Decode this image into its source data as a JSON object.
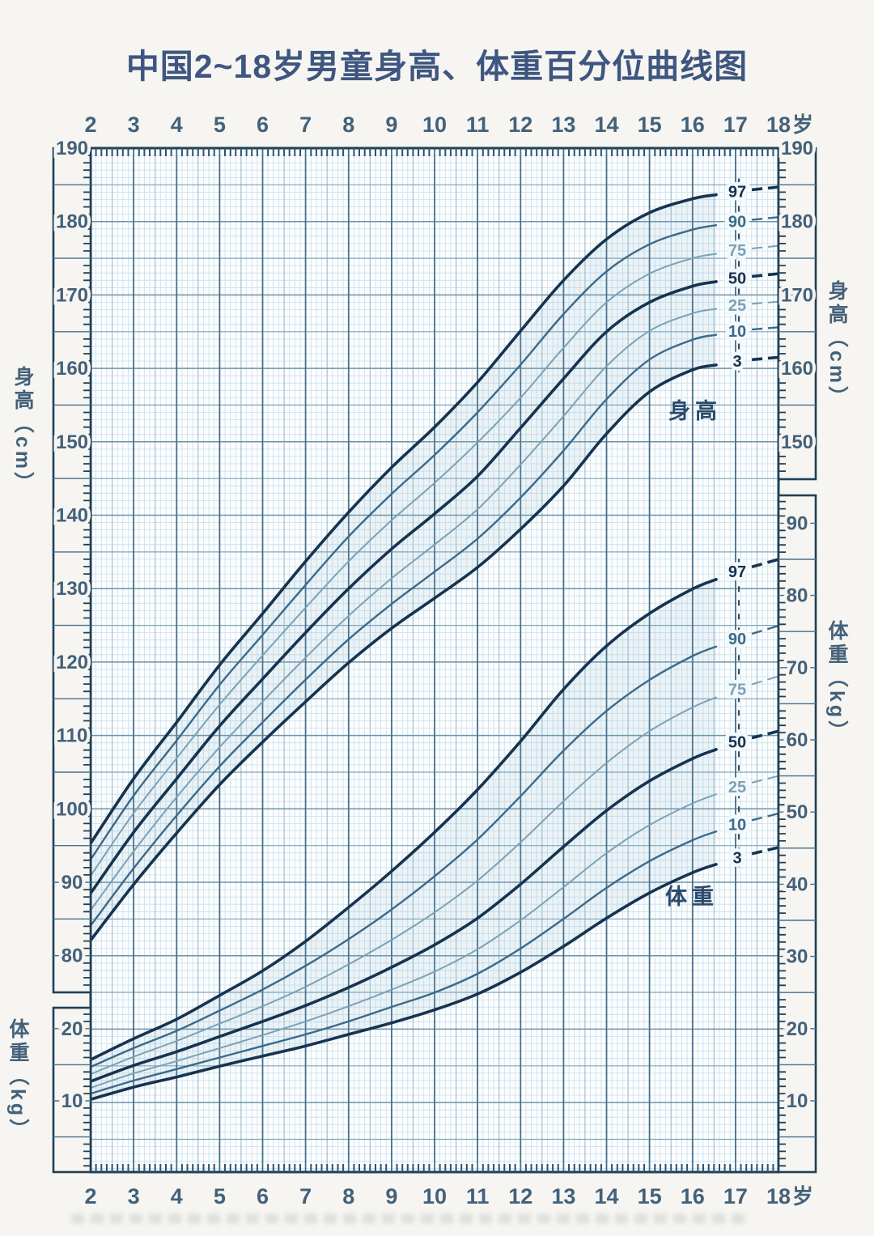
{
  "chart": {
    "title": "中国2~18岁男童身高、体重百分位曲线图",
    "age_axis_suffix": "岁",
    "left_axis_top_title": "身高（cm）",
    "left_axis_bottom_title": "体重（kg）",
    "right_axis_top_title": "身高（cm）",
    "right_axis_bottom_title": "体重（kg）",
    "height_family_label": "身高",
    "weight_family_label": "体重"
  },
  "style": {
    "title_color": "#3e5680",
    "tick_color": "#44617a",
    "border_color": "#1f4057",
    "grid_year_color": "#47708c",
    "grid_major_color": "#7fa5ba",
    "grid_major10_color": "#6d93a9",
    "grid_half_color": "#9dbccb",
    "grid_minor_color": "#cbdfe9",
    "plot_bg": "#fbfdfe",
    "page_bg": "#f6f5f1",
    "curve_bold": "#16334f",
    "curve_medium": "#3c6a8a",
    "curve_light": "#7ba2b6",
    "band_fill": "rgba(125,170,200,0.12)",
    "guide_color": "#2b4c66"
  },
  "chart_data": {
    "type": "line",
    "title": "中国2~18岁男童身高、体重百分位曲线图",
    "x": [
      2,
      3,
      4,
      5,
      6,
      7,
      8,
      9,
      10,
      11,
      12,
      13,
      14,
      15,
      16,
      17,
      18
    ],
    "x_tick_labels": [
      "2",
      "3",
      "4",
      "5",
      "6",
      "7",
      "8",
      "9",
      "10",
      "11",
      "12",
      "13",
      "14",
      "15",
      "16",
      "17",
      "18"
    ],
    "x_axis_suffix": "岁",
    "legend_position": "on-curve-right",
    "grid": true,
    "percentile_labels": [
      "97",
      "90",
      "75",
      "50",
      "25",
      "10",
      "3"
    ],
    "height": {
      "label": "身高",
      "unit": "cm",
      "axis_range": [
        75,
        190
      ],
      "left_tick_labels": [
        190,
        180,
        170,
        160,
        150,
        140,
        130,
        120,
        110,
        100,
        90,
        80
      ],
      "right_tick_labels": [
        190,
        180,
        170,
        160,
        150
      ],
      "series": [
        {
          "percentile": 97,
          "emphasis": "bold",
          "values": [
            95.3,
            104.1,
            111.8,
            119.6,
            126.6,
            133.7,
            140.4,
            146.5,
            152.0,
            158.1,
            165.1,
            172.0,
            177.6,
            181.2,
            183.1,
            184.1,
            184.7
          ]
        },
        {
          "percentile": 90,
          "emphasis": "medium",
          "values": [
            93.1,
            101.8,
            109.3,
            116.9,
            123.7,
            130.5,
            137.1,
            142.9,
            148.2,
            154.0,
            160.5,
            167.4,
            173.2,
            176.9,
            178.9,
            180.0,
            180.6
          ]
        },
        {
          "percentile": 75,
          "emphasis": "light",
          "values": [
            90.9,
            99.4,
            106.9,
            114.2,
            120.9,
            127.4,
            133.7,
            139.3,
            144.4,
            149.9,
            156.0,
            162.8,
            169.0,
            172.9,
            175.0,
            176.1,
            176.7
          ]
        },
        {
          "percentile": 50,
          "emphasis": "bold",
          "values": [
            88.5,
            96.8,
            104.1,
            111.3,
            117.7,
            124.0,
            130.0,
            135.4,
            140.2,
            145.3,
            151.9,
            158.6,
            165.0,
            169.0,
            171.2,
            172.3,
            172.9
          ]
        },
        {
          "percentile": 25,
          "emphasis": "light",
          "values": [
            86.2,
            94.2,
            101.6,
            108.4,
            114.6,
            120.6,
            126.3,
            131.4,
            136.0,
            140.8,
            146.9,
            153.5,
            160.3,
            165.1,
            167.5,
            168.6,
            169.1
          ]
        },
        {
          "percentile": 10,
          "emphasis": "medium",
          "values": [
            84.1,
            91.9,
            99.1,
            105.8,
            111.8,
            117.6,
            123.1,
            127.9,
            132.3,
            136.8,
            142.4,
            148.8,
            155.8,
            161.2,
            163.9,
            165.1,
            165.6
          ]
        },
        {
          "percentile": 3,
          "emphasis": "bold",
          "values": [
            82.1,
            89.7,
            96.7,
            103.3,
            109.1,
            114.6,
            119.9,
            124.6,
            128.7,
            132.9,
            138.1,
            144.0,
            151.1,
            156.8,
            159.8,
            161.0,
            161.5
          ]
        }
      ]
    },
    "weight": {
      "label": "体重",
      "unit": "kg",
      "axis_range": [
        0,
        94
      ],
      "left_tick_labels": [
        20,
        10
      ],
      "right_tick_labels": [
        90,
        80,
        70,
        60,
        50,
        40,
        30,
        20,
        10
      ],
      "series": [
        {
          "percentile": 97,
          "emphasis": "bold",
          "values": [
            15.7,
            18.6,
            21.3,
            24.6,
            28.0,
            32.1,
            36.8,
            41.8,
            47.2,
            53.1,
            59.8,
            67.0,
            73.0,
            77.5,
            80.9,
            83.3,
            85.0
          ]
        },
        {
          "percentile": 90,
          "emphasis": "medium",
          "values": [
            14.7,
            17.3,
            19.7,
            22.5,
            25.4,
            28.7,
            32.4,
            36.5,
            41.1,
            46.2,
            52.2,
            58.5,
            64.0,
            68.3,
            71.6,
            74.0,
            75.8
          ]
        },
        {
          "percentile": 75,
          "emphasis": "light",
          "values": [
            13.7,
            16.1,
            18.3,
            20.7,
            23.1,
            25.8,
            28.9,
            32.3,
            36.1,
            40.5,
            45.8,
            51.5,
            56.8,
            61.2,
            64.5,
            67.0,
            68.8
          ]
        },
        {
          "percentile": 50,
          "emphasis": "bold",
          "values": [
            12.7,
            14.9,
            16.8,
            18.9,
            21.0,
            23.2,
            25.7,
            28.5,
            31.6,
            35.3,
            40.0,
            45.2,
            50.2,
            54.3,
            57.4,
            59.7,
            61.2
          ]
        },
        {
          "percentile": 25,
          "emphasis": "light",
          "values": [
            11.8,
            13.8,
            15.5,
            17.3,
            19.1,
            21.0,
            23.1,
            25.4,
            27.9,
            31.0,
            35.0,
            39.6,
            44.3,
            48.2,
            51.2,
            53.5,
            55.0
          ]
        },
        {
          "percentile": 10,
          "emphasis": "medium",
          "values": [
            11.0,
            12.8,
            14.4,
            16.0,
            17.6,
            19.2,
            21.0,
            23.0,
            25.0,
            27.6,
            31.1,
            35.2,
            39.5,
            43.2,
            46.1,
            48.3,
            49.8
          ]
        },
        {
          "percentile": 3,
          "emphasis": "bold",
          "values": [
            10.2,
            11.9,
            13.3,
            14.8,
            16.2,
            17.6,
            19.2,
            20.8,
            22.6,
            24.8,
            27.8,
            31.4,
            35.3,
            38.8,
            41.6,
            43.7,
            45.1
          ]
        }
      ]
    }
  }
}
